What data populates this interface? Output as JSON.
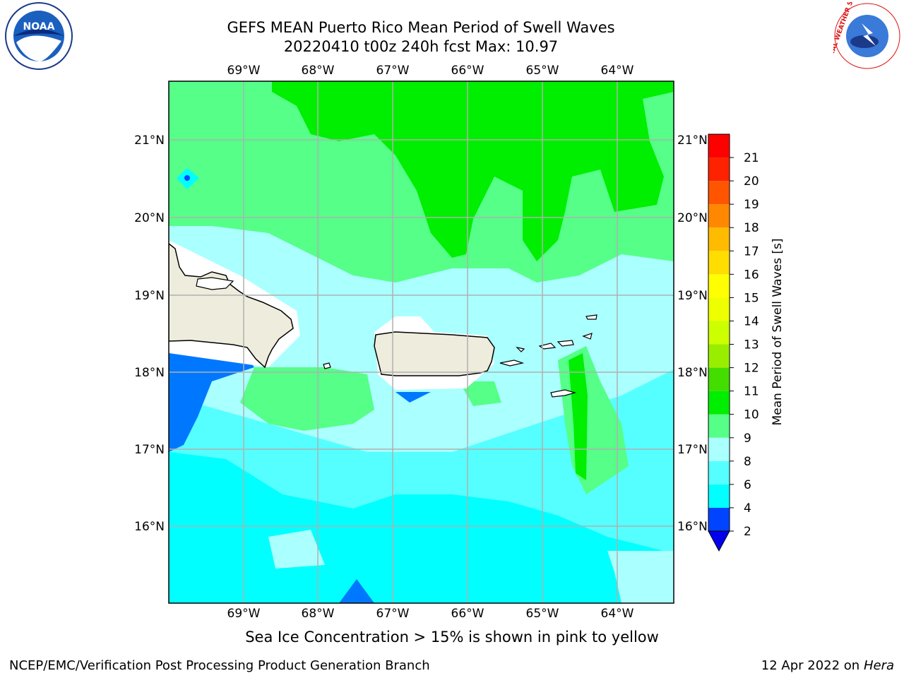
{
  "title": {
    "line1": "GEFS MEAN Puerto Rico Mean Period of Swell Waves",
    "line2": "20220410 t00z 240h fcst   Max: 10.97"
  },
  "map": {
    "lon_labels": [
      "69°W",
      "68°W",
      "67°W",
      "66°W",
      "65°W",
      "64°W"
    ],
    "lat_labels": [
      "21°N",
      "20°N",
      "19°N",
      "18°N",
      "17°N",
      "16°N"
    ],
    "land_color": "#eeecdc",
    "masked_color": "#ffffff"
  },
  "colorbar": {
    "label": "Mean Period of Swell Waves [s]",
    "ticks": [
      "2",
      "4",
      "6",
      "8",
      "9",
      "10",
      "11",
      "12",
      "13",
      "14",
      "15",
      "16",
      "17",
      "18",
      "19",
      "20",
      "21"
    ],
    "colors": [
      "#0044ff",
      "#00ffff",
      "#55ffff",
      "#aaffff",
      "#55ff88",
      "#00ee00",
      "#44dd00",
      "#99ee00",
      "#ccff00",
      "#eeff00",
      "#ffff00",
      "#ffdd00",
      "#ffbb00",
      "#ff8800",
      "#ff5500",
      "#ff2200",
      "#ff0000"
    ],
    "under_color": "#0000ee"
  },
  "footnote": "Sea Ice Concentration > 15% is shown in pink to yellow",
  "credit": "NCEP/EMC/Verification Post Processing Product Generation Branch",
  "date": {
    "text": "12 Apr 2022 on ",
    "host": "Hera"
  },
  "logos": {
    "left": "NOAA",
    "right": "NATIONAL WEATHER SERVICE"
  }
}
